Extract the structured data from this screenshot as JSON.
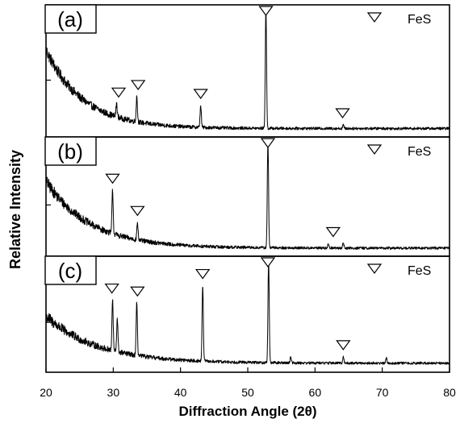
{
  "chart_data": {
    "type": "line",
    "xlabel": "Diffraction Angle (2θ)",
    "ylabel": "Relative Intensity",
    "xlim": [
      20,
      80
    ],
    "x_ticks": [
      "20",
      "30",
      "40",
      "50",
      "60",
      "70",
      "80"
    ],
    "panels": [
      {
        "label": "(a)",
        "legend": "FeS",
        "background": {
          "start": 0.65,
          "decay": 5.5,
          "noise": 0.055,
          "floor": 0.03
        },
        "peaks": [
          {
            "x": 30.5,
            "height": 0.11
          },
          {
            "x": 33.5,
            "height": 0.21
          },
          {
            "x": 43.0,
            "height": 0.18
          },
          {
            "x": 52.7,
            "height": 1.0
          },
          {
            "x": 64.2,
            "height": 0.03
          }
        ],
        "markers": [
          30.8,
          33.7,
          43.0,
          52.7,
          64.1
        ]
      },
      {
        "label": "(b)",
        "legend": "FeS",
        "background": {
          "start": 0.62,
          "decay": 6.5,
          "noise": 0.06,
          "floor": 0.03
        },
        "peaks": [
          {
            "x": 29.9,
            "height": 0.4
          },
          {
            "x": 33.6,
            "height": 0.16
          },
          {
            "x": 53.0,
            "height": 1.0
          },
          {
            "x": 62.0,
            "height": 0.04
          },
          {
            "x": 64.2,
            "height": 0.05
          }
        ],
        "markers": [
          29.9,
          33.6,
          53.0,
          62.7
        ]
      },
      {
        "label": "(c)",
        "legend": "FeS",
        "background": {
          "start": 0.45,
          "decay": 7.5,
          "noise": 0.06,
          "floor": 0.04
        },
        "peaks": [
          {
            "x": 29.9,
            "height": 0.48
          },
          {
            "x": 30.6,
            "height": 0.32
          },
          {
            "x": 33.5,
            "height": 0.5
          },
          {
            "x": 43.3,
            "height": 0.72
          },
          {
            "x": 53.1,
            "height": 0.98
          },
          {
            "x": 56.4,
            "height": 0.06
          },
          {
            "x": 64.2,
            "height": 0.06
          },
          {
            "x": 70.6,
            "height": 0.05
          }
        ],
        "markers": [
          29.8,
          33.6,
          43.3,
          53.0,
          64.2
        ]
      }
    ]
  }
}
